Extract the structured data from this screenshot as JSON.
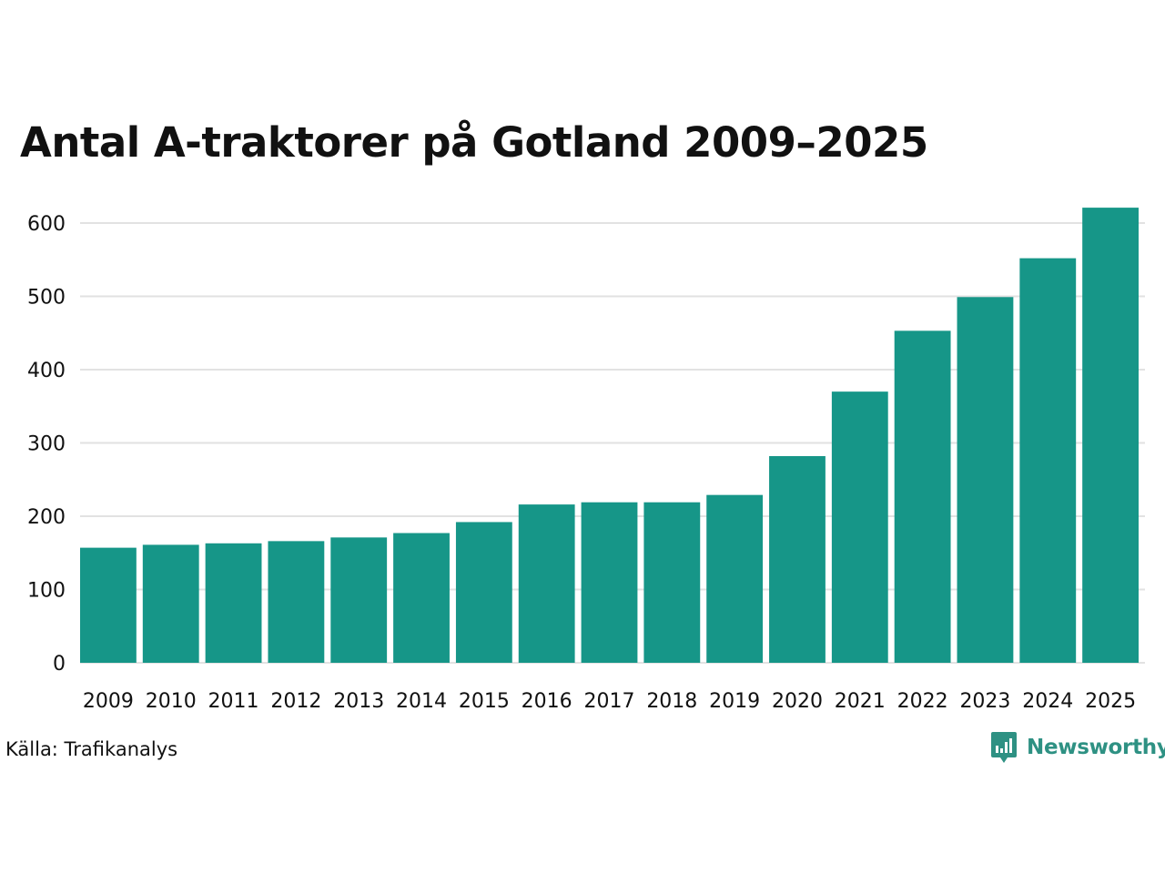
{
  "chart_data": {
    "type": "bar",
    "title": "Antal A-traktorer på Gotland 2009–2025",
    "xlabel": "",
    "ylabel": "",
    "categories": [
      "2009",
      "2010",
      "2011",
      "2012",
      "2013",
      "2014",
      "2015",
      "2016",
      "2017",
      "2018",
      "2019",
      "2020",
      "2021",
      "2022",
      "2023",
      "2024",
      "2025"
    ],
    "values": [
      157,
      161,
      163,
      166,
      171,
      177,
      192,
      216,
      219,
      219,
      229,
      282,
      370,
      453,
      499,
      552,
      621
    ],
    "ylim": [
      0,
      640
    ],
    "yticks": [
      0,
      100,
      200,
      300,
      400,
      500,
      600
    ],
    "grid": true,
    "bar_color": "#169688",
    "grid_color": "#e2e2e2"
  },
  "footer": {
    "source": "Källa: Trafikanalys",
    "brand": "Newsworthy",
    "brand_icon": "newsworthy-logo-icon",
    "brand_color": "#2e9183"
  }
}
